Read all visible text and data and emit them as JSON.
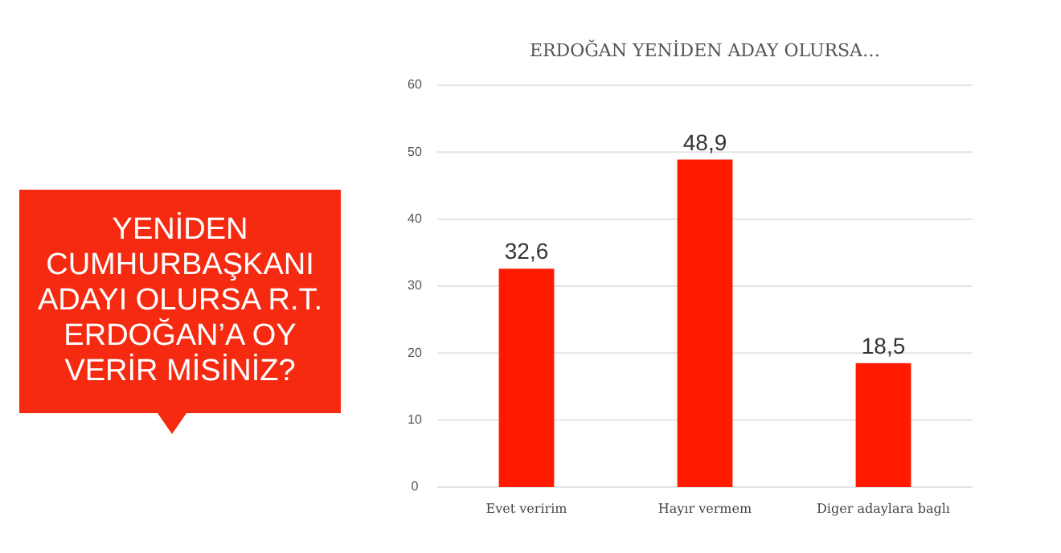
{
  "chart_data": {
    "type": "bar",
    "title": "ERDOĞAN YENİDEN ADAY OLURSA…",
    "categories": [
      "Evet veririm",
      "Hayır vermem",
      "Diger adaylara baglı"
    ],
    "values": [
      32.6,
      48.9,
      18.5
    ],
    "color": "#ff1a00",
    "value_labels": [
      "32,6",
      "48,9",
      "18,5"
    ],
    "ylim": [
      0,
      60
    ],
    "yticks": [
      0,
      10,
      20,
      30,
      40,
      50,
      60
    ],
    "grid": "y",
    "annotations": [
      "YENİDEN CUMHURBAŞKANI ADAYI OLURSA R.T. ERDOĞAN’A OY VERİR MİSİNİZ?"
    ]
  }
}
